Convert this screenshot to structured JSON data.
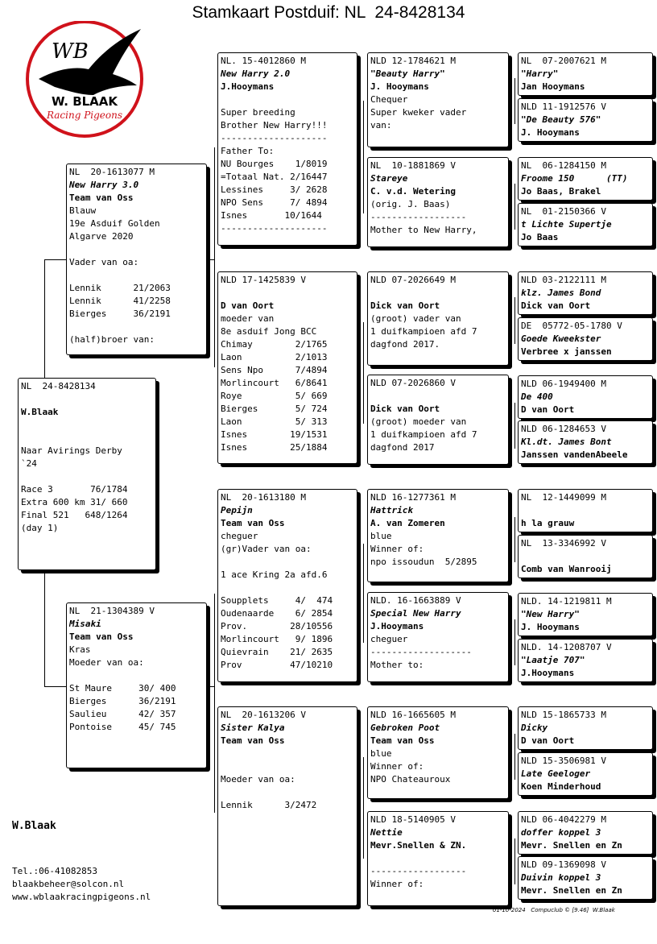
{
  "title": "Stamkaart Postduif: NL  24-8428134",
  "logo": {
    "initials": "WB",
    "name": "W. BLAAK",
    "tagline": "Racing Pigeons",
    "ring_color": "#d0121b",
    "bird_color": "#000000"
  },
  "owner": {
    "name": "W.Blaak",
    "phone": "Tel.:06-41082853",
    "email": "blaakbeheer@solcon.nl",
    "website": "www.wblaakracingpigeons.nl"
  },
  "footer": "01-10-2024   Compuclub © [9.46]  W.Blaak",
  "main": [
    {
      "t": "NL  24-8428134",
      "s": "n"
    },
    {
      "t": "",
      "s": "n"
    },
    {
      "t": "W.Blaak",
      "s": "b"
    },
    {
      "t": "",
      "s": "n"
    },
    {
      "t": "",
      "s": "n"
    },
    {
      "t": "Naar Avirings Derby",
      "s": "n"
    },
    {
      "t": "`24",
      "s": "n"
    },
    {
      "t": "",
      "s": "n"
    },
    {
      "t": "Race 3       76/1784",
      "s": "n"
    },
    {
      "t": "Extra 600 km 31/ 660",
      "s": "n"
    },
    {
      "t": "Final 521   648/1264",
      "s": "n"
    },
    {
      "t": "(day 1)",
      "s": "n"
    }
  ],
  "father": [
    {
      "t": "NL  20-1613077 M",
      "s": "n"
    },
    {
      "t": "New Harry 3.0",
      "s": "bi"
    },
    {
      "t": "Team van Oss",
      "s": "b"
    },
    {
      "t": "Blauw",
      "s": "n"
    },
    {
      "t": "19e Asduif Golden",
      "s": "n"
    },
    {
      "t": "Algarve 2020",
      "s": "n"
    },
    {
      "t": "",
      "s": "n"
    },
    {
      "t": "Vader van oa:",
      "s": "n"
    },
    {
      "t": "",
      "s": "n"
    },
    {
      "t": "Lennik      21/2063",
      "s": "n"
    },
    {
      "t": "Lennik      41/2258",
      "s": "n"
    },
    {
      "t": "Bierges     36/2191",
      "s": "n"
    },
    {
      "t": "",
      "s": "n"
    },
    {
      "t": "(half)broer van:",
      "s": "n"
    }
  ],
  "mother": [
    {
      "t": "NL  21-1304389 V",
      "s": "n"
    },
    {
      "t": "Misaki",
      "s": "bi"
    },
    {
      "t": "Team van Oss",
      "s": "b"
    },
    {
      "t": "Kras",
      "s": "n"
    },
    {
      "t": "Moeder van oa:",
      "s": "n"
    },
    {
      "t": "",
      "s": "n"
    },
    {
      "t": "St Maure     30/ 400",
      "s": "n"
    },
    {
      "t": "Bierges      36/2191",
      "s": "n"
    },
    {
      "t": "Saulieu      42/ 357",
      "s": "n"
    },
    {
      "t": "Pontoise     45/ 745",
      "s": "n"
    }
  ],
  "gp": [
    [
      {
        "t": "NL. 15-4012860 M",
        "s": "n"
      },
      {
        "t": "New Harry 2.0",
        "s": "bi"
      },
      {
        "t": "J.Hooymans",
        "s": "b"
      },
      {
        "t": "",
        "s": "n"
      },
      {
        "t": "Super breeding",
        "s": "n"
      },
      {
        "t": "Brother New Harry!!!",
        "s": "n"
      },
      {
        "t": "--------------------",
        "s": "n"
      },
      {
        "t": "Father To:",
        "s": "n"
      },
      {
        "t": "NU Bourges    1/8019",
        "s": "n"
      },
      {
        "t": "=Totaal Nat. 2/16447",
        "s": "n"
      },
      {
        "t": "Lessines     3/ 2628",
        "s": "n"
      },
      {
        "t": "NPO Sens     7/ 4894",
        "s": "n"
      },
      {
        "t": "Isnes       10/1644",
        "s": "n"
      },
      {
        "t": "--------------------",
        "s": "n"
      }
    ],
    [
      {
        "t": "NLD 17-1425839 V",
        "s": "n"
      },
      {
        "t": "",
        "s": "n"
      },
      {
        "t": "D van Oort",
        "s": "b"
      },
      {
        "t": "moeder van",
        "s": "n"
      },
      {
        "t": "8e asduif Jong BCC",
        "s": "n"
      },
      {
        "t": "Chimay        2/1765",
        "s": "n"
      },
      {
        "t": "Laon          2/1013",
        "s": "n"
      },
      {
        "t": "Sens Npo      7/4894",
        "s": "n"
      },
      {
        "t": "Morlincourt   6/8641",
        "s": "n"
      },
      {
        "t": "Roye          5/ 669",
        "s": "n"
      },
      {
        "t": "Bierges       5/ 724",
        "s": "n"
      },
      {
        "t": "Laon          5/ 313",
        "s": "n"
      },
      {
        "t": "Isnes        19/1531",
        "s": "n"
      },
      {
        "t": "Isnes        25/1884",
        "s": "n"
      }
    ],
    [
      {
        "t": "NL  20-1613180 M",
        "s": "n"
      },
      {
        "t": "Pepijn",
        "s": "bi"
      },
      {
        "t": "Team van Oss",
        "s": "b"
      },
      {
        "t": "cheguer",
        "s": "n"
      },
      {
        "t": "(gr)Vader van oa:",
        "s": "n"
      },
      {
        "t": "",
        "s": "n"
      },
      {
        "t": "1 ace Kring 2a afd.6",
        "s": "n"
      },
      {
        "t": "",
        "s": "n"
      },
      {
        "t": "Soupplets     4/  474",
        "s": "n"
      },
      {
        "t": "Oudenaarde    6/ 2854",
        "s": "n"
      },
      {
        "t": "Prov.        28/10556",
        "s": "n"
      },
      {
        "t": "Morlincourt   9/ 1896",
        "s": "n"
      },
      {
        "t": "Quievrain    21/ 2635",
        "s": "n"
      },
      {
        "t": "Prov         47/10210",
        "s": "n"
      }
    ],
    [
      {
        "t": "NL  20-1613206 V",
        "s": "n"
      },
      {
        "t": "Sister Kalya",
        "s": "bi"
      },
      {
        "t": "Team van Oss",
        "s": "b"
      },
      {
        "t": "",
        "s": "n"
      },
      {
        "t": "",
        "s": "n"
      },
      {
        "t": "Moeder van oa:",
        "s": "n"
      },
      {
        "t": "",
        "s": "n"
      },
      {
        "t": "Lennik      3/2472",
        "s": "n"
      }
    ]
  ],
  "ggp": [
    [
      {
        "t": "NLD 12-1784621 M",
        "s": "n"
      },
      {
        "t": "\"Beauty Harry\"",
        "s": "bi"
      },
      {
        "t": "J. Hooymans",
        "s": "b"
      },
      {
        "t": "Chequer",
        "s": "n"
      },
      {
        "t": "Super kweker vader",
        "s": "n"
      },
      {
        "t": "van:",
        "s": "n"
      }
    ],
    [
      {
        "t": "NL  10-1881869 V",
        "s": "n"
      },
      {
        "t": "Stareye",
        "s": "bi"
      },
      {
        "t": "C. v.d. Wetering",
        "s": "b"
      },
      {
        "t": "(orig. J. Baas)",
        "s": "n"
      },
      {
        "t": "------------------",
        "s": "n"
      },
      {
        "t": "Mother to New Harry,",
        "s": "n"
      }
    ],
    [
      {
        "t": "NLD 07-2026649 M",
        "s": "n"
      },
      {
        "t": "",
        "s": "n"
      },
      {
        "t": "Dick van Oort",
        "s": "b"
      },
      {
        "t": "(groot) vader van",
        "s": "n"
      },
      {
        "t": "1 duifkampioen afd 7",
        "s": "n"
      },
      {
        "t": "dagfond 2017.",
        "s": "n"
      }
    ],
    [
      {
        "t": "NLD 07-2026860 V",
        "s": "n"
      },
      {
        "t": "",
        "s": "n"
      },
      {
        "t": "Dick van Oort",
        "s": "b"
      },
      {
        "t": "(groot) moeder van",
        "s": "n"
      },
      {
        "t": "1 duifkampioen afd 7",
        "s": "n"
      },
      {
        "t": "dagfond 2017",
        "s": "n"
      }
    ],
    [
      {
        "t": "NLD 16-1277361 M",
        "s": "n"
      },
      {
        "t": "Hattrick",
        "s": "bi"
      },
      {
        "t": "A. van Zomeren",
        "s": "b"
      },
      {
        "t": "blue",
        "s": "n"
      },
      {
        "t": "Winner of:",
        "s": "n"
      },
      {
        "t": "npo issoudun  5/2895",
        "s": "n"
      }
    ],
    [
      {
        "t": "NLD. 16-1663889 V",
        "s": "n"
      },
      {
        "t": "Special New Harry",
        "s": "bi"
      },
      {
        "t": "J.Hooymans",
        "s": "b"
      },
      {
        "t": "cheguer",
        "s": "n"
      },
      {
        "t": "-------------------",
        "s": "n"
      },
      {
        "t": "Mother to:",
        "s": "n"
      }
    ],
    [
      {
        "t": "NLD 16-1665605 M",
        "s": "n"
      },
      {
        "t": "Gebroken Poot",
        "s": "bi"
      },
      {
        "t": "Team van Oss",
        "s": "b"
      },
      {
        "t": "blue",
        "s": "n"
      },
      {
        "t": "Winner of:",
        "s": "n"
      },
      {
        "t": "NPO Chateauroux",
        "s": "n"
      }
    ],
    [
      {
        "t": "NLD 18-5140905 V",
        "s": "n"
      },
      {
        "t": "Nettie",
        "s": "bi"
      },
      {
        "t": "Mevr.Snellen & ZN.",
        "s": "b"
      },
      {
        "t": "",
        "s": "n"
      },
      {
        "t": "------------------",
        "s": "n"
      },
      {
        "t": "Winner of:",
        "s": "n"
      }
    ]
  ],
  "gggp": [
    [
      {
        "t": "NL  07-2007621 M",
        "s": "n"
      },
      {
        "t": "\"Harry\"",
        "s": "bi"
      },
      {
        "t": "Jan Hooymans",
        "s": "b"
      }
    ],
    [
      {
        "t": "NLD 11-1912576 V",
        "s": "n"
      },
      {
        "t": "\"De Beauty 576\"",
        "s": "bi"
      },
      {
        "t": "J. Hooymans",
        "s": "b"
      }
    ],
    [
      {
        "t": "NL  06-1284150 M",
        "s": "n"
      },
      {
        "t": "Froome 150      (TT)",
        "s": "bi"
      },
      {
        "t": "Jo Baas, Brakel",
        "s": "b"
      }
    ],
    [
      {
        "t": "NL  01-2150366 V",
        "s": "n"
      },
      {
        "t": "t Lichte Supertje",
        "s": "bi"
      },
      {
        "t": "Jo Baas",
        "s": "b"
      }
    ],
    [
      {
        "t": "NLD 03-2122111 M",
        "s": "n"
      },
      {
        "t": "klz. James Bond",
        "s": "bi"
      },
      {
        "t": "Dick van Oort",
        "s": "b"
      }
    ],
    [
      {
        "t": "DE  05772-05-1780 V",
        "s": "n"
      },
      {
        "t": "Goede Kweekster",
        "s": "bi"
      },
      {
        "t": "Verbree x janssen",
        "s": "b"
      }
    ],
    [
      {
        "t": "NLD 06-1949400 M",
        "s": "n"
      },
      {
        "t": "De 400",
        "s": "bi"
      },
      {
        "t": "D van Oort",
        "s": "b"
      }
    ],
    [
      {
        "t": "NLD 06-1284653 V",
        "s": "n"
      },
      {
        "t": "Kl.dt. James Bont",
        "s": "bi"
      },
      {
        "t": "Janssen vandenAbeele",
        "s": "b"
      }
    ],
    [
      {
        "t": "NL  12-1449099 M",
        "s": "n"
      },
      {
        "t": "",
        "s": "n"
      },
      {
        "t": "h la grauw",
        "s": "b"
      }
    ],
    [
      {
        "t": "NL  13-3346992 V",
        "s": "n"
      },
      {
        "t": "",
        "s": "n"
      },
      {
        "t": "Comb van Wanrooij",
        "s": "b"
      }
    ],
    [
      {
        "t": "NLD. 14-1219811 M",
        "s": "n"
      },
      {
        "t": "\"New Harry\"",
        "s": "bi"
      },
      {
        "t": "J. Hooymans",
        "s": "b"
      }
    ],
    [
      {
        "t": "NLD. 14-1208707 V",
        "s": "n"
      },
      {
        "t": "\"Laatje 707\"",
        "s": "bi"
      },
      {
        "t": "J.Hooymans",
        "s": "b"
      }
    ],
    [
      {
        "t": "NLD 15-1865733 M",
        "s": "n"
      },
      {
        "t": "Dicky",
        "s": "bi"
      },
      {
        "t": "D van Oort",
        "s": "b"
      }
    ],
    [
      {
        "t": "NLD 15-3506981 V",
        "s": "n"
      },
      {
        "t": "Late Geeloger",
        "s": "bi"
      },
      {
        "t": "Koen Minderhoud",
        "s": "b"
      }
    ],
    [
      {
        "t": "NLD 06-4042279 M",
        "s": "n"
      },
      {
        "t": "doffer koppel 3",
        "s": "bi"
      },
      {
        "t": "Mevr. Snellen en Zn",
        "s": "b"
      }
    ],
    [
      {
        "t": "NLD 09-1369098 V",
        "s": "n"
      },
      {
        "t": "Duivin koppel 3",
        "s": "bi"
      },
      {
        "t": "Mevr. Snellen en Zn",
        "s": "b"
      }
    ]
  ]
}
